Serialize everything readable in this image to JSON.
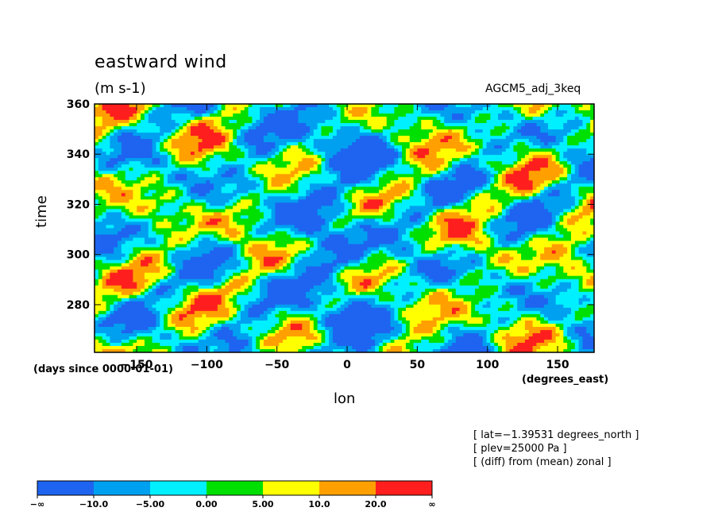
{
  "chart_data": {
    "type": "heatmap",
    "title": "eastward wind",
    "units": "(m s-1)",
    "dataset": "AGCM5_adj_3keq",
    "xlabel": "lon",
    "ylabel": "time",
    "x_unit": "(degrees_east)",
    "y_unit": "(days since 0000-01-01)",
    "xlim": [
      -180,
      176
    ],
    "ylim": [
      261,
      360
    ],
    "x_ticks": [
      -150,
      -100,
      -50,
      0,
      50,
      100,
      150
    ],
    "x_tick_labels": [
      "−150",
      "−100",
      "−50",
      "0",
      "50",
      "100",
      "150"
    ],
    "y_ticks": [
      280,
      300,
      320,
      340,
      360
    ],
    "y_tick_labels": [
      "280",
      "300",
      "320",
      "340",
      "360"
    ],
    "colorbar": {
      "levels": [
        "−∞",
        "−10.0",
        "−5.00",
        "0.00",
        "5.00",
        "10.0",
        "20.0",
        "∞"
      ],
      "colors": [
        "#1e64f0",
        "#00a0f0",
        "#00f0ff",
        "#00e000",
        "#ffff00",
        "#ffa000",
        "#ff1e1e"
      ]
    },
    "notes": [
      "[ lat=−1.39531 degrees_north ]",
      "[ plev=25000 Pa ]",
      "[ (diff) from (mean) zonal ]"
    ]
  }
}
